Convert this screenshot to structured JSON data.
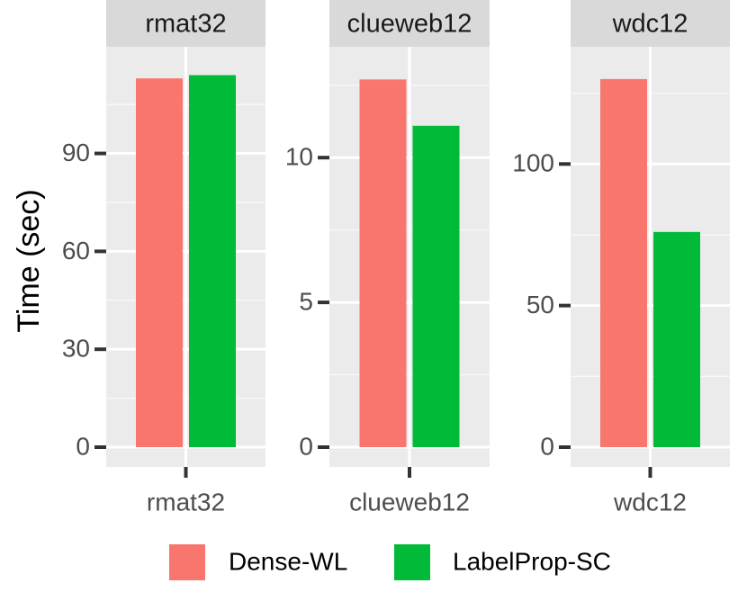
{
  "chart_data": {
    "type": "bar",
    "ylabel": "Time (sec)",
    "series_names": [
      "Dense-WL",
      "LabelProp-SC"
    ],
    "colors": {
      "Dense-WL": "#F8766D",
      "LabelProp-SC": "#00BA38"
    },
    "legend_position": "bottom",
    "grid": true,
    "facets": [
      {
        "title": "rmat32",
        "category": "rmat32",
        "ylim": [
          0,
          118
        ],
        "y_ticks": [
          0,
          30,
          60,
          90
        ],
        "y_minor": [
          15,
          45,
          75,
          105
        ],
        "values": {
          "Dense-WL": 113,
          "LabelProp-SC": 114
        }
      },
      {
        "title": "clueweb12",
        "category": "clueweb12",
        "ylim": [
          0,
          13.3
        ],
        "y_ticks": [
          0,
          5,
          10
        ],
        "y_minor": [
          2.5,
          7.5,
          12.5
        ],
        "values": {
          "Dense-WL": 12.7,
          "LabelProp-SC": 11.1
        }
      },
      {
        "title": "wdc12",
        "category": "wdc12",
        "ylim": [
          0,
          136
        ],
        "y_ticks": [
          0,
          50,
          100
        ],
        "y_minor": [
          25,
          75,
          125
        ],
        "values": {
          "Dense-WL": 130,
          "LabelProp-SC": 76
        }
      }
    ]
  }
}
